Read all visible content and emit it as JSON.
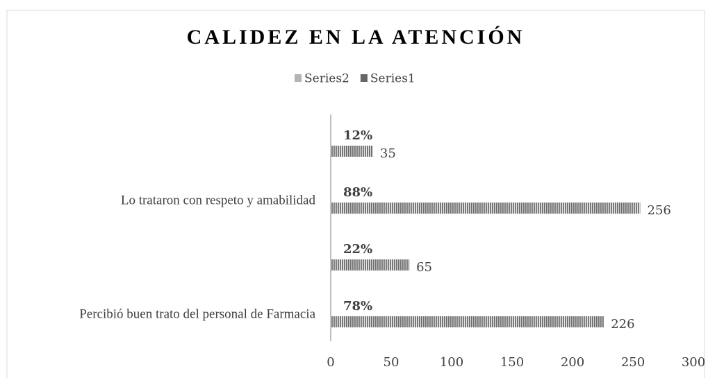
{
  "chart_data": {
    "type": "bar",
    "orientation": "horizontal",
    "title": "CALIDEZ EN LA ATENCIÓN",
    "legend": [
      {
        "name": "Series2",
        "color": "#b4b4b4"
      },
      {
        "name": "Series1",
        "color": "#666666"
      }
    ],
    "categories": [
      null,
      "Lo trataron con respeto y amabilidad",
      null,
      "Percibió buen trato del personal de Farmacia"
    ],
    "values": [
      35,
      256,
      65,
      226
    ],
    "percent_labels": [
      "12%",
      "88%",
      "22%",
      "78%"
    ],
    "color": "#6e6e6e",
    "xlim": [
      0,
      300
    ],
    "xticks": [
      0,
      50,
      100,
      150,
      200,
      250,
      300
    ],
    "grid": false
  }
}
